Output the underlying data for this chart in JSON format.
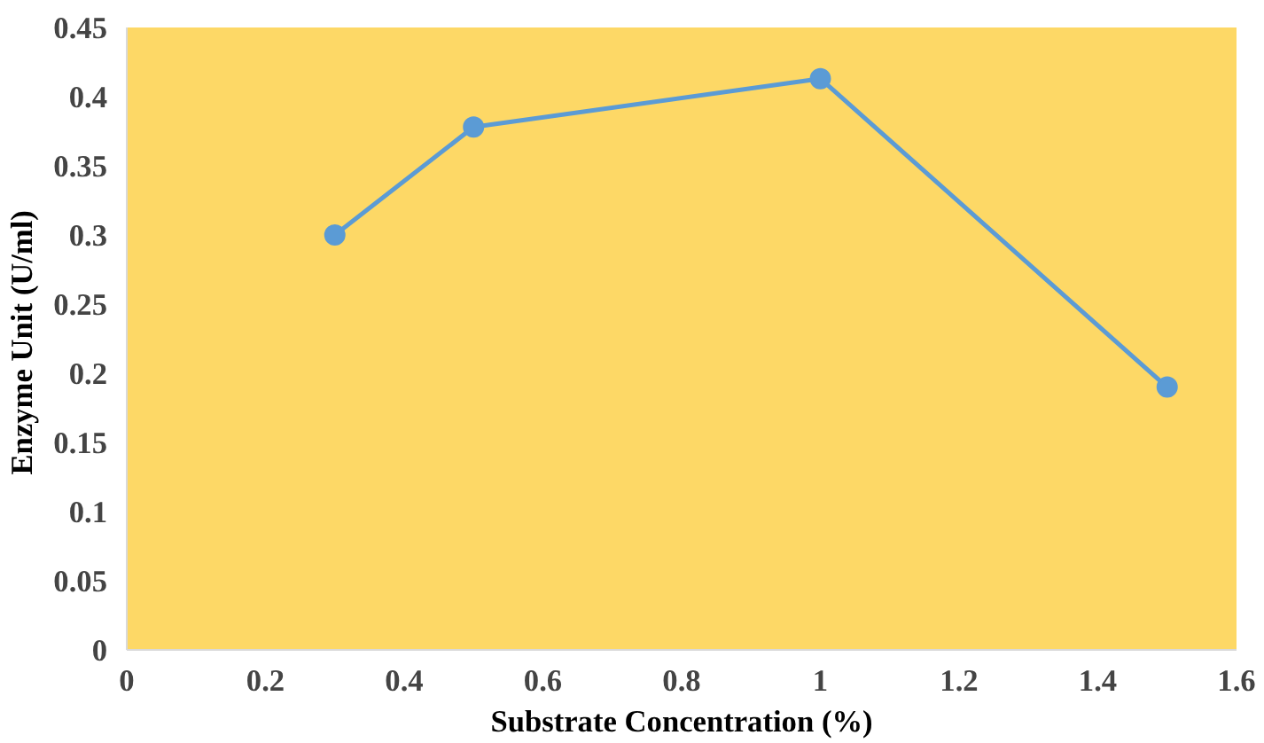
{
  "chart_data": {
    "type": "line",
    "xlabel": "Substrate Concentration (%)",
    "ylabel": "Enzyme Unit  (U/ml)",
    "x": [
      0.3,
      0.5,
      1.0,
      1.5
    ],
    "series": [
      {
        "color": "#5b9bd5",
        "values": [
          0.3,
          0.378,
          0.413,
          0.19
        ]
      }
    ],
    "xlim": [
      0,
      1.6
    ],
    "xticks": [
      0,
      0.2,
      0.4,
      0.6,
      0.8,
      1,
      1.2,
      1.4,
      1.6
    ],
    "ylim": [
      0,
      0.45
    ],
    "yticks": [
      0,
      0.05,
      0.1,
      0.15,
      0.2,
      0.25,
      0.3,
      0.35,
      0.4,
      0.45
    ],
    "grid": false,
    "marker": "circle",
    "line_style": "solid"
  }
}
